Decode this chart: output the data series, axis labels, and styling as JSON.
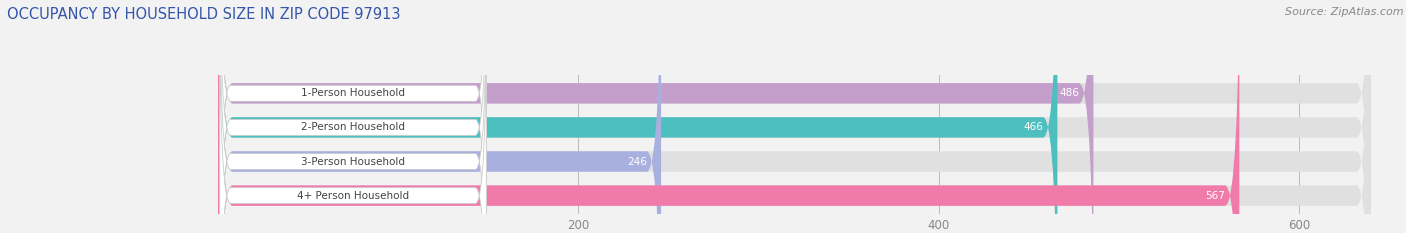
{
  "title": "OCCUPANCY BY HOUSEHOLD SIZE IN ZIP CODE 97913",
  "source": "Source: ZipAtlas.com",
  "categories": [
    "1-Person Household",
    "2-Person Household",
    "3-Person Household",
    "4+ Person Household"
  ],
  "values": [
    486,
    466,
    246,
    567
  ],
  "bar_colors": [
    "#c49fcc",
    "#4dbfbf",
    "#a8b0e0",
    "#f07aaa"
  ],
  "background_color": "#f2f2f2",
  "bar_bg_color": "#e0e0e0",
  "xlim_max": 640,
  "xticks": [
    200,
    400,
    600
  ],
  "title_color": "#3355aa",
  "title_fontsize": 10.5,
  "source_fontsize": 8,
  "label_fontsize": 7.5,
  "value_fontsize": 7.5,
  "tick_fontsize": 8.5
}
